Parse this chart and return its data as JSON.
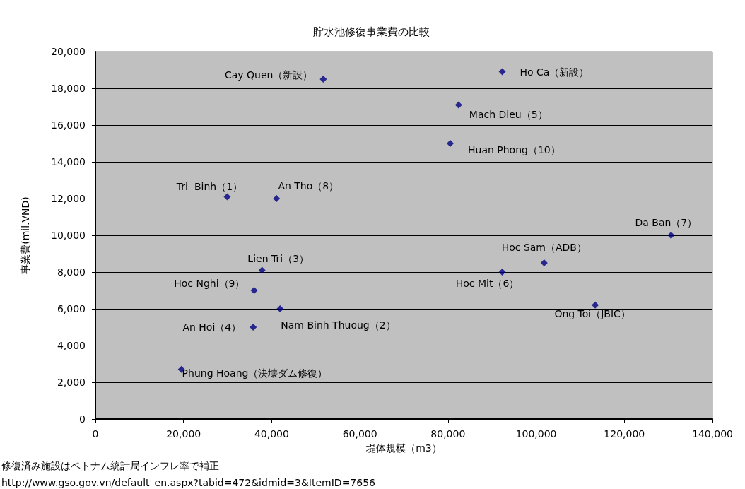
{
  "chart_data": {
    "type": "scatter",
    "title": "貯水池修復事業費の比較",
    "xlabel": "堤体規模（m3）",
    "ylabel": "事業費(mil.VND)",
    "annotations": [
      "修復済み施設はベトナム統計局インフレ率で補正",
      "http://www.gso.gov.vn/default_en.aspx?tabid=472&idmid=3&ItemID=7656",
      {
        "text": "Phung Hoang（決壊ダム修復）",
        "x": 19500,
        "y": 2700
      },
      {
        "text": "Tri  Binh（1）",
        "x": 29900,
        "y": 12100
      },
      {
        "text": "An Tho（8）",
        "x": 41100,
        "y": 12000
      },
      {
        "text": "Cay Quen（新設）",
        "x": 51700,
        "y": 18500
      },
      {
        "text": "Ho Ca（新設）",
        "x": 92300,
        "y": 18900
      },
      {
        "text": "Mach Dieu（5）",
        "x": 82400,
        "y": 17100
      },
      {
        "text": "Huan Phong（10）",
        "x": 80500,
        "y": 15000
      },
      {
        "text": "Da Ban（7）",
        "x": 130600,
        "y": 10000
      },
      {
        "text": "Hoc Sam（ADB）",
        "x": 101800,
        "y": 8500
      },
      {
        "text": "Hoc Mit（6）",
        "x": 92300,
        "y": 8000
      },
      {
        "text": "Ong Toi（JBIC）",
        "x": 113400,
        "y": 6200
      },
      {
        "text": "Lien Tri（3）",
        "x": 37800,
        "y": 8100
      },
      {
        "text": "Hoc Nghi（9）",
        "x": 36000,
        "y": 7000
      },
      {
        "text": "Nam Binh Thuoug（2）",
        "x": 41900,
        "y": 6000
      },
      {
        "text": "An Hoi（4）",
        "x": 35800,
        "y": 5000
      }
    ],
    "x": [
      19500,
      29900,
      41100,
      51700,
      92300,
      82400,
      80500,
      130600,
      101800,
      92300,
      113400,
      37800,
      36000,
      41900,
      35800
    ],
    "series": [
      {
        "color": "#000080",
        "values": [
          2700,
          12100,
          12000,
          18500,
          18900,
          17100,
          15000,
          10000,
          8500,
          8000,
          6200,
          8100,
          7000,
          6000,
          5000
        ]
      }
    ],
    "xlim": [
      0,
      140000
    ],
    "xticks": [
      0,
      {
        "value": 20000,
        "label": "20,000"
      },
      {
        "value": 40000,
        "label": "40,000"
      },
      {
        "value": 60000,
        "label": "60,000"
      },
      {
        "value": 80000,
        "label": "80,000"
      },
      {
        "value": 100000,
        "label": "100,000"
      },
      {
        "value": 120000,
        "label": "120,000"
      },
      {
        "value": 140000,
        "label": "140,000"
      }
    ],
    "ylim": [
      0,
      20000
    ],
    "yticks": [
      0,
      {
        "value": 2000,
        "label": "2,000"
      },
      {
        "value": 4000,
        "label": "4,000"
      },
      {
        "value": 6000,
        "label": "6,000"
      },
      {
        "value": 8000,
        "label": "8,000"
      },
      {
        "value": 10000,
        "label": "10,000"
      },
      {
        "value": 12000,
        "label": "12,000"
      },
      {
        "value": 14000,
        "label": "14,000"
      },
      {
        "value": 16000,
        "label": "16,000"
      },
      {
        "value": 18000,
        "label": "18,000"
      },
      {
        "value": 20000,
        "label": "20,000"
      }
    ],
    "grid": "y",
    "marker": "diamond"
  }
}
